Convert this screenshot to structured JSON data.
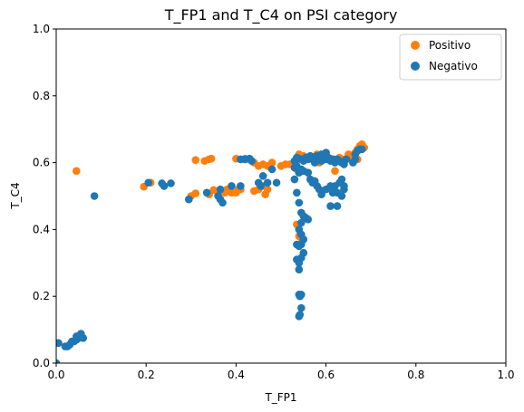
{
  "chart_data": {
    "type": "scatter",
    "title": "T_FP1 and T_C4 on PSI category",
    "xlabel": "T_FP1",
    "ylabel": "T_C4",
    "xlim": [
      0,
      1
    ],
    "ylim": [
      0,
      1
    ],
    "xticks": [
      0.0,
      0.2,
      0.4,
      0.6,
      0.8,
      1.0
    ],
    "yticks": [
      0.0,
      0.2,
      0.4,
      0.6,
      0.8,
      1.0
    ],
    "xtick_labels": [
      "0.0",
      "0.2",
      "0.4",
      "0.6",
      "0.8",
      "1.0"
    ],
    "ytick_labels": [
      "0.0",
      "0.2",
      "0.4",
      "0.6",
      "0.8",
      "1.0"
    ],
    "grid": false,
    "legend_position": "top-right",
    "series": [
      {
        "name": "Positivo",
        "color": "#ff7f0e",
        "points": [
          [
            0.045,
            0.575
          ],
          [
            0.195,
            0.528
          ],
          [
            0.21,
            0.54
          ],
          [
            0.3,
            0.5
          ],
          [
            0.31,
            0.508
          ],
          [
            0.31,
            0.608
          ],
          [
            0.33,
            0.605
          ],
          [
            0.34,
            0.61
          ],
          [
            0.345,
            0.612
          ],
          [
            0.35,
            0.518
          ],
          [
            0.36,
            0.51
          ],
          [
            0.34,
            0.505
          ],
          [
            0.375,
            0.51
          ],
          [
            0.38,
            0.52
          ],
          [
            0.39,
            0.51
          ],
          [
            0.4,
            0.51
          ],
          [
            0.405,
            0.52
          ],
          [
            0.41,
            0.52
          ],
          [
            0.4,
            0.612
          ],
          [
            0.42,
            0.612
          ],
          [
            0.43,
            0.61
          ],
          [
            0.44,
            0.6
          ],
          [
            0.45,
            0.59
          ],
          [
            0.46,
            0.595
          ],
          [
            0.47,
            0.59
          ],
          [
            0.48,
            0.6
          ],
          [
            0.44,
            0.515
          ],
          [
            0.45,
            0.52
          ],
          [
            0.46,
            0.53
          ],
          [
            0.465,
            0.505
          ],
          [
            0.47,
            0.52
          ],
          [
            0.5,
            0.59
          ],
          [
            0.51,
            0.595
          ],
          [
            0.52,
            0.595
          ],
          [
            0.53,
            0.6
          ],
          [
            0.54,
            0.625
          ],
          [
            0.55,
            0.62
          ],
          [
            0.56,
            0.615
          ],
          [
            0.57,
            0.61
          ],
          [
            0.58,
            0.625
          ],
          [
            0.59,
            0.62
          ],
          [
            0.6,
            0.615
          ],
          [
            0.61,
            0.612
          ],
          [
            0.62,
            0.61
          ],
          [
            0.63,
            0.615
          ],
          [
            0.64,
            0.61
          ],
          [
            0.65,
            0.625
          ],
          [
            0.66,
            0.62
          ],
          [
            0.665,
            0.63
          ],
          [
            0.67,
            0.64
          ],
          [
            0.675,
            0.65
          ],
          [
            0.68,
            0.655
          ],
          [
            0.685,
            0.645
          ],
          [
            0.67,
            0.61
          ],
          [
            0.66,
            0.615
          ],
          [
            0.535,
            0.415
          ],
          [
            0.54,
            0.38
          ],
          [
            0.545,
            0.36
          ],
          [
            0.55,
            0.33
          ],
          [
            0.535,
            0.58
          ],
          [
            0.56,
            0.57
          ],
          [
            0.575,
            0.61
          ],
          [
            0.585,
            0.6
          ],
          [
            0.62,
            0.575
          ]
        ]
      },
      {
        "name": "Negativo",
        "color": "#1f77b4",
        "points": [
          [
            0.0,
            0.0
          ],
          [
            0.005,
            0.06
          ],
          [
            0.02,
            0.05
          ],
          [
            0.025,
            0.05
          ],
          [
            0.03,
            0.055
          ],
          [
            0.035,
            0.065
          ],
          [
            0.04,
            0.065
          ],
          [
            0.045,
            0.07
          ],
          [
            0.05,
            0.075
          ],
          [
            0.055,
            0.08
          ],
          [
            0.055,
            0.088
          ],
          [
            0.06,
            0.075
          ],
          [
            0.045,
            0.08
          ],
          [
            0.085,
            0.5
          ],
          [
            0.205,
            0.54
          ],
          [
            0.235,
            0.538
          ],
          [
            0.24,
            0.53
          ],
          [
            0.255,
            0.538
          ],
          [
            0.295,
            0.49
          ],
          [
            0.335,
            0.51
          ],
          [
            0.36,
            0.5
          ],
          [
            0.365,
            0.49
          ],
          [
            0.37,
            0.48
          ],
          [
            0.365,
            0.52
          ],
          [
            0.39,
            0.53
          ],
          [
            0.41,
            0.53
          ],
          [
            0.41,
            0.61
          ],
          [
            0.42,
            0.61
          ],
          [
            0.43,
            0.612
          ],
          [
            0.435,
            0.605
          ],
          [
            0.45,
            0.54
          ],
          [
            0.455,
            0.53
          ],
          [
            0.46,
            0.56
          ],
          [
            0.47,
            0.54
          ],
          [
            0.48,
            0.58
          ],
          [
            0.49,
            0.54
          ],
          [
            0.53,
            0.605
          ],
          [
            0.535,
            0.615
          ],
          [
            0.54,
            0.612
          ],
          [
            0.545,
            0.61
          ],
          [
            0.55,
            0.605
          ],
          [
            0.555,
            0.615
          ],
          [
            0.56,
            0.61
          ],
          [
            0.565,
            0.62
          ],
          [
            0.57,
            0.612
          ],
          [
            0.575,
            0.6
          ],
          [
            0.58,
            0.61
          ],
          [
            0.585,
            0.615
          ],
          [
            0.59,
            0.605
          ],
          [
            0.595,
            0.62
          ],
          [
            0.6,
            0.61
          ],
          [
            0.605,
            0.615
          ],
          [
            0.61,
            0.605
          ],
          [
            0.615,
            0.61
          ],
          [
            0.62,
            0.6
          ],
          [
            0.625,
            0.61
          ],
          [
            0.63,
            0.605
          ],
          [
            0.635,
            0.6
          ],
          [
            0.64,
            0.595
          ],
          [
            0.645,
            0.61
          ],
          [
            0.53,
            0.585
          ],
          [
            0.535,
            0.59
          ],
          [
            0.54,
            0.57
          ],
          [
            0.545,
            0.58
          ],
          [
            0.55,
            0.575
          ],
          [
            0.56,
            0.57
          ],
          [
            0.565,
            0.55
          ],
          [
            0.57,
            0.54
          ],
          [
            0.575,
            0.545
          ],
          [
            0.58,
            0.53
          ],
          [
            0.585,
            0.52
          ],
          [
            0.59,
            0.505
          ],
          [
            0.6,
            0.52
          ],
          [
            0.61,
            0.53
          ],
          [
            0.615,
            0.51
          ],
          [
            0.62,
            0.53
          ],
          [
            0.625,
            0.51
          ],
          [
            0.63,
            0.54
          ],
          [
            0.635,
            0.55
          ],
          [
            0.64,
            0.52
          ],
          [
            0.64,
            0.53
          ],
          [
            0.635,
            0.5
          ],
          [
            0.61,
            0.47
          ],
          [
            0.625,
            0.47
          ],
          [
            0.53,
            0.55
          ],
          [
            0.535,
            0.51
          ],
          [
            0.54,
            0.48
          ],
          [
            0.545,
            0.45
          ],
          [
            0.55,
            0.44
          ],
          [
            0.555,
            0.435
          ],
          [
            0.56,
            0.43
          ],
          [
            0.545,
            0.42
          ],
          [
            0.54,
            0.4
          ],
          [
            0.545,
            0.385
          ],
          [
            0.55,
            0.37
          ],
          [
            0.545,
            0.355
          ],
          [
            0.54,
            0.35
          ],
          [
            0.535,
            0.355
          ],
          [
            0.55,
            0.33
          ],
          [
            0.545,
            0.315
          ],
          [
            0.535,
            0.31
          ],
          [
            0.54,
            0.3
          ],
          [
            0.54,
            0.28
          ],
          [
            0.54,
            0.205
          ],
          [
            0.545,
            0.205
          ],
          [
            0.542,
            0.2
          ],
          [
            0.545,
            0.165
          ],
          [
            0.54,
            0.14
          ],
          [
            0.542,
            0.145
          ],
          [
            0.66,
            0.6
          ],
          [
            0.665,
            0.61
          ],
          [
            0.67,
            0.635
          ],
          [
            0.675,
            0.64
          ],
          [
            0.68,
            0.64
          ],
          [
            0.665,
            0.625
          ],
          [
            0.58,
            0.62
          ],
          [
            0.59,
            0.625
          ],
          [
            0.6,
            0.63
          ]
        ]
      }
    ]
  }
}
